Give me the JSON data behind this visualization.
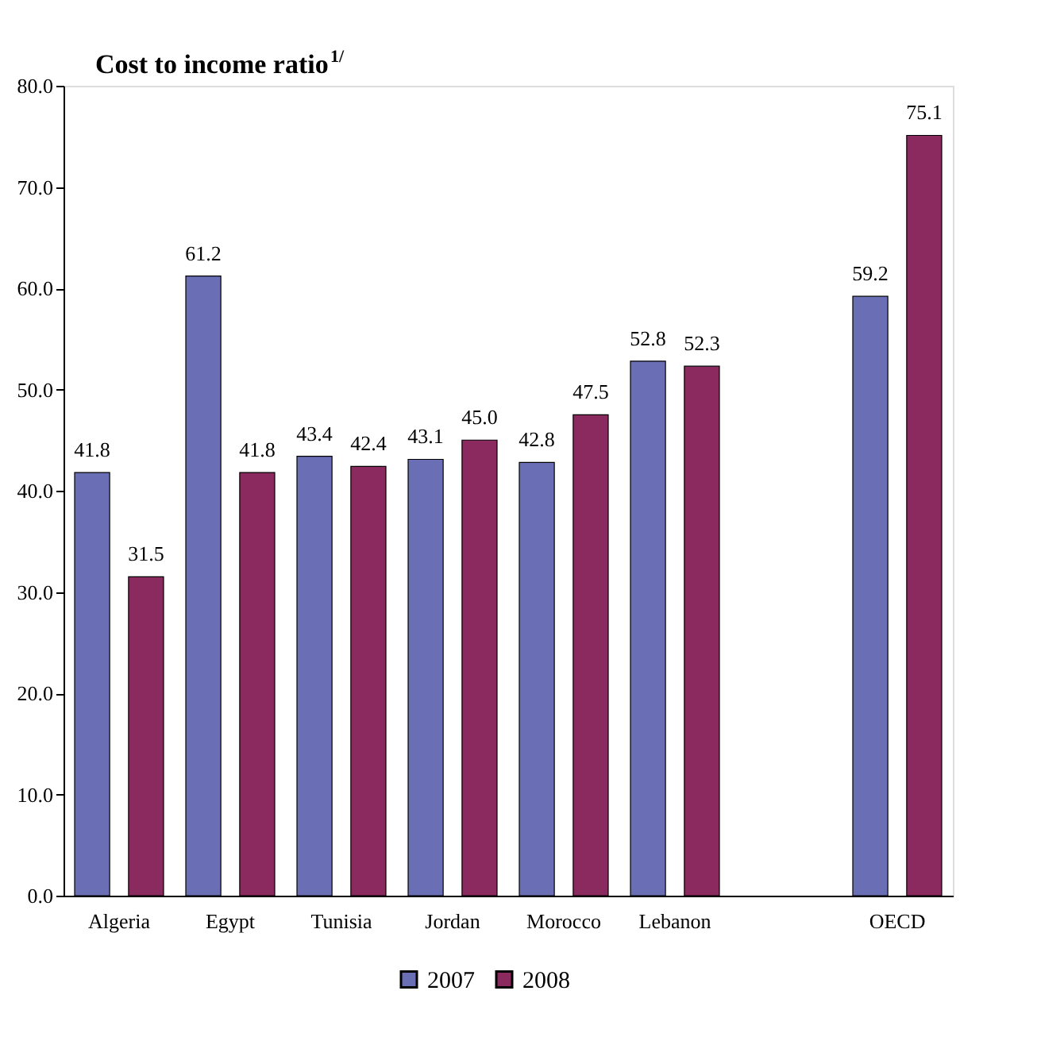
{
  "chart_data": {
    "type": "bar",
    "title": "Cost to income ratio$^{1/}$",
    "categories": [
      "Algeria",
      "Egypt",
      "Tunisia",
      "Jordan",
      "Morocco",
      "Lebanon",
      null,
      "OECD"
    ],
    "series": [
      {
        "name": "2007",
        "color": "#6a6eb4",
        "values": [
          41.8,
          61.2,
          43.4,
          43.1,
          42.8,
          52.8,
          null,
          59.2
        ],
        "value_labels": [
          "41.8",
          "61.2",
          "43.4",
          "43.1",
          "42.8",
          "52.8",
          null,
          "59.2"
        ]
      },
      {
        "name": "2008",
        "color": "#8a2a5e",
        "values": [
          31.5,
          41.8,
          42.4,
          45.0,
          47.5,
          52.3,
          null,
          75.1
        ],
        "value_labels": [
          "31.5",
          "41.8",
          "42.4",
          "45.0",
          "47.5",
          "52.3",
          null,
          "75.1"
        ]
      }
    ],
    "ylim": [
      0,
      80
    ],
    "yticks": [
      {
        "value": 0,
        "label": "0.0"
      },
      {
        "value": 10,
        "label": "10.0"
      },
      {
        "value": 20,
        "label": "20.0"
      },
      {
        "value": 30,
        "label": "30.0"
      },
      {
        "value": 40,
        "label": "40.0"
      },
      {
        "value": 50,
        "label": "50.0"
      },
      {
        "value": 60,
        "label": "60.0"
      },
      {
        "value": 70,
        "label": "70.0"
      },
      {
        "value": 80,
        "label": "80.0"
      }
    ],
    "grid": false,
    "legend": "bottom"
  }
}
